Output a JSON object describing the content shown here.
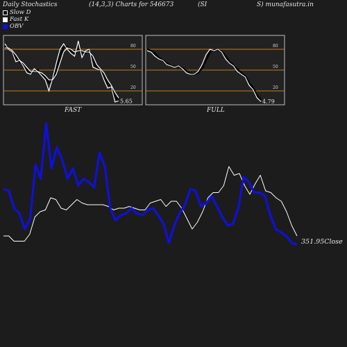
{
  "header": {
    "left": "Daily Stochastics",
    "center": "(14,3,3) Charts for 546673",
    "symbol_open": "(SI",
    "symbol_close": "S) munafasutra.in"
  },
  "legend": [
    {
      "label": "Slow  D",
      "swatch": "black"
    },
    {
      "label": "Fast K",
      "swatch": "white"
    },
    {
      "label": "OBV",
      "swatch": "blue"
    }
  ],
  "colors": {
    "background": "#1c1c1c",
    "panel": "#222222",
    "level_line": "#c87a1a",
    "price_line": "#ffffff",
    "obv_line": "#1010d8"
  },
  "chart_data": [
    {
      "type": "line",
      "title": "FAST",
      "levels": [
        80,
        50,
        20
      ],
      "ylim": [
        0,
        100
      ],
      "last_value_label": "5.65",
      "series": [
        {
          "values": [
            88,
            80,
            76,
            62,
            64,
            56,
            46,
            44,
            52,
            48,
            42,
            36,
            20,
            38,
            60,
            80,
            88,
            80,
            74,
            70,
            92,
            68,
            78,
            80,
            54,
            52,
            50,
            36,
            24,
            26,
            4,
            5.65
          ]
        },
        {
          "values": [
            84,
            82,
            76,
            68,
            62,
            58,
            50,
            46,
            48,
            50,
            44,
            40,
            32,
            36,
            50,
            70,
            82,
            84,
            78,
            74,
            80,
            76,
            74,
            78,
            64,
            54,
            50,
            42,
            30,
            26,
            12,
            6
          ]
        },
        {
          "values": [
            82,
            82,
            78,
            72,
            64,
            60,
            54,
            48,
            48,
            48,
            46,
            42,
            36,
            36,
            44,
            60,
            76,
            82,
            80,
            76,
            78,
            78,
            76,
            76,
            70,
            58,
            52,
            46,
            36,
            28,
            18,
            10
          ]
        }
      ]
    },
    {
      "type": "line",
      "title": "FULL",
      "levels": [
        80,
        50,
        20
      ],
      "ylim": [
        0,
        100
      ],
      "last_value_label": "4.79",
      "series": [
        {
          "values": [
            78,
            76,
            70,
            66,
            64,
            58,
            56,
            54,
            56,
            52,
            46,
            44,
            44,
            48,
            58,
            72,
            80,
            78,
            80,
            76,
            66,
            60,
            56,
            48,
            44,
            40,
            28,
            22,
            10,
            4.79
          ]
        },
        {
          "values": [
            80,
            78,
            74,
            68,
            64,
            60,
            56,
            55,
            55,
            53,
            49,
            45,
            44,
            46,
            53,
            64,
            76,
            79,
            79,
            77,
            70,
            62,
            57,
            51,
            46,
            41,
            32,
            24,
            14,
            7
          ]
        }
      ]
    },
    {
      "type": "line",
      "last_value_label": "351.95Close",
      "series": [
        {
          "values": [
            3.6,
            3.6,
            3.0,
            3.0,
            3.0,
            3.8,
            5.8,
            6.4,
            6.6,
            8.0,
            7.8,
            6.8,
            6.6,
            7.2,
            7.8,
            7.4,
            7.2,
            7.2,
            7.2,
            7.2,
            7.0,
            6.6,
            6.8,
            6.8,
            7.0,
            6.8,
            6.6,
            6.6,
            7.4,
            7.6,
            7.8,
            7.0,
            7.6,
            7.6,
            6.8,
            5.6,
            4.4,
            5.2,
            6.4,
            8.0,
            8.6,
            8.6,
            9.4,
            11.6,
            10.6,
            10.8,
            9.4,
            8.4,
            9.6,
            10.6,
            8.8,
            8.6,
            8.0,
            7.6,
            6.4,
            4.8,
            3.6
          ]
        },
        {
          "values": [
            9.0,
            8.8,
            6.8,
            6.2,
            4.4,
            5.6,
            11.8,
            10.2,
            16.6,
            11.4,
            13.8,
            12.4,
            10.2,
            11.4,
            9.4,
            10.2,
            9.8,
            9.2,
            13.2,
            11.6,
            6.8,
            5.4,
            6.0,
            6.2,
            6.8,
            6.2,
            6.0,
            6.6,
            6.8,
            6.0,
            5.0,
            2.8,
            4.8,
            6.2,
            7.2,
            9.0,
            8.8,
            7.0,
            7.4,
            8.2,
            7.0,
            5.8,
            4.8,
            5.0,
            6.8,
            10.4,
            9.8,
            8.6,
            8.6,
            8.2,
            6.0,
            4.4,
            4.0,
            3.6,
            2.8,
            2.6
          ]
        }
      ]
    }
  ]
}
